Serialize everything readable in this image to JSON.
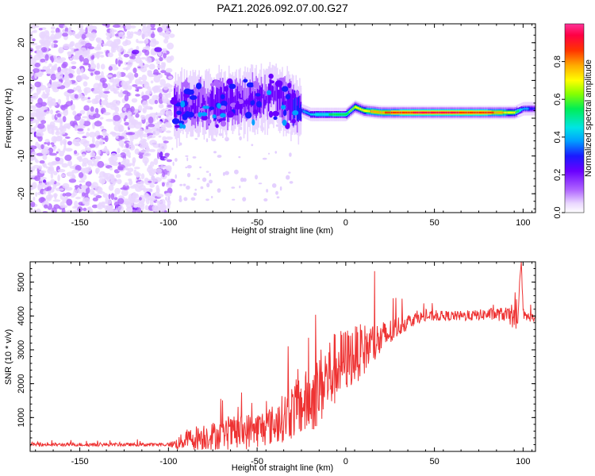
{
  "title": "PAZ1.2026.092.07.00.G27",
  "chart_data": [
    {
      "type": "heatmap",
      "title": "PAZ1.2026.092.07.00.G27",
      "xlabel": "Height of straight line (km)",
      "ylabel": "Frequency (Hz)",
      "xlim": [
        -178,
        107
      ],
      "ylim": [
        -25,
        25
      ],
      "x_ticks": [
        -150,
        -100,
        -50,
        0,
        50,
        100
      ],
      "y_ticks": [
        -20,
        -10,
        0,
        10,
        20
      ],
      "colorbar": {
        "label": "Normalized spectral amplitude",
        "range": [
          0,
          1
        ],
        "ticks": [
          0.0,
          0.2,
          0.4,
          0.6,
          0.8
        ],
        "colors": [
          "#ffffff",
          "#cc99ff",
          "#8800ff",
          "#0000ff",
          "#00e5ff",
          "#00ff66",
          "#ffff00",
          "#ff8800",
          "#ff0000",
          "#ff3399"
        ]
      },
      "ridge": {
        "description_points_x": [
          -95,
          -70,
          -50,
          -40,
          -30,
          -20,
          -10,
          0,
          5,
          10,
          20,
          40,
          60,
          80,
          95,
          100,
          107
        ],
        "frequency_hz": [
          3,
          4,
          5,
          6,
          3,
          1,
          1,
          1,
          3,
          2,
          1.5,
          1.5,
          1.5,
          1.5,
          1.5,
          2.5,
          2.5
        ],
        "amplitude": [
          0.25,
          0.28,
          0.25,
          0.22,
          0.3,
          0.45,
          0.55,
          0.6,
          0.7,
          0.75,
          0.85,
          0.95,
          0.95,
          0.9,
          0.7,
          0.4,
          0.35
        ]
      }
    },
    {
      "type": "line",
      "xlabel": "Height of straight line (km)",
      "ylabel": "SNR (10 * v/v)",
      "xlim": [
        -178,
        107
      ],
      "ylim": [
        0,
        5600
      ],
      "x_ticks": [
        -150,
        -100,
        -50,
        0,
        50,
        100
      ],
      "y_ticks": [
        1000,
        2000,
        3000,
        4000,
        5000
      ],
      "series": [
        {
          "name": "SNR",
          "color": "#ee3333",
          "x": [
            -178,
            -150,
            -120,
            -100,
            -95,
            -90,
            -80,
            -70,
            -60,
            -50,
            -40,
            -30,
            -20,
            -15,
            -10,
            -5,
            0,
            10,
            20,
            30,
            40,
            50,
            60,
            70,
            80,
            90,
            95,
            97,
            98,
            99,
            100,
            105,
            107
          ],
          "y": [
            200,
            200,
            200,
            200,
            230,
            350,
            450,
            480,
            550,
            650,
            800,
            1200,
            1500,
            1900,
            2200,
            2500,
            2700,
            3000,
            3300,
            3700,
            3950,
            4000,
            4000,
            4000,
            4050,
            4050,
            3900,
            3500,
            5000,
            5600,
            4000,
            3950,
            3950
          ],
          "noise_amplitude": [
            80,
            80,
            80,
            80,
            300,
            500,
            700,
            700,
            900,
            900,
            1000,
            1400,
            1700,
            1900,
            2000,
            1800,
            1600,
            1300,
            900,
            500,
            300,
            250,
            250,
            250,
            300,
            350,
            500,
            600,
            0,
            0,
            300,
            200,
            200
          ]
        }
      ]
    }
  ]
}
